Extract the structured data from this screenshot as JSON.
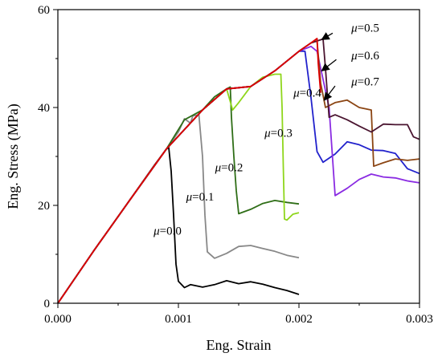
{
  "chart_data": {
    "type": "line",
    "xlabel": "Eng. Strain",
    "ylabel": "Eng. Stress (MPa)",
    "xlim": [
      0,
      0.003
    ],
    "ylim": [
      0,
      60
    ],
    "xticks": [
      "0.000",
      "0.001",
      "0.002",
      "0.003"
    ],
    "xtick_values": [
      0,
      0.001,
      0.002,
      0.003
    ],
    "yticks": [
      "0",
      "20",
      "40",
      "60"
    ],
    "ytick_values": [
      0,
      20,
      40,
      60
    ],
    "grid": false,
    "legend": "none",
    "series": [
      {
        "color": "#000000",
        "points": [
          [
            0,
            0
          ],
          [
            0.0003,
            10.8
          ],
          [
            0.0006,
            21.2
          ],
          [
            0.0008,
            28.2
          ],
          [
            0.0009,
            31.5
          ],
          [
            0.00092,
            31.8
          ],
          [
            0.00094,
            27
          ],
          [
            0.00096,
            18
          ],
          [
            0.00098,
            8
          ],
          [
            0.001,
            4.5
          ],
          [
            0.00105,
            3.2
          ],
          [
            0.0011,
            3.8
          ],
          [
            0.0012,
            3.3
          ],
          [
            0.0013,
            3.8
          ],
          [
            0.0014,
            4.6
          ],
          [
            0.0015,
            4.0
          ],
          [
            0.0016,
            4.4
          ],
          [
            0.0017,
            3.9
          ],
          [
            0.0018,
            3.2
          ],
          [
            0.0019,
            2.6
          ],
          [
            0.002,
            1.8
          ]
        ]
      },
      {
        "color": "#888888",
        "points": [
          [
            0,
            0
          ],
          [
            0.0003,
            10.8
          ],
          [
            0.0006,
            21.2
          ],
          [
            0.0009,
            31.5
          ],
          [
            0.001,
            35
          ],
          [
            0.00105,
            37.7
          ],
          [
            0.0011,
            36.8
          ],
          [
            0.00112,
            38.3
          ],
          [
            0.00117,
            38.5
          ],
          [
            0.0012,
            30
          ],
          [
            0.00122,
            18
          ],
          [
            0.00124,
            10.5
          ],
          [
            0.0013,
            9.2
          ],
          [
            0.0014,
            10.2
          ],
          [
            0.0015,
            11.6
          ],
          [
            0.0016,
            11.8
          ],
          [
            0.0017,
            11.2
          ],
          [
            0.0018,
            10.6
          ],
          [
            0.0019,
            9.8
          ],
          [
            0.002,
            9.3
          ]
        ]
      },
      {
        "color": "#2f6e17",
        "points": [
          [
            0,
            0
          ],
          [
            0.0003,
            10.8
          ],
          [
            0.0006,
            21.2
          ],
          [
            0.0009,
            31.5
          ],
          [
            0.00105,
            37.5
          ],
          [
            0.0012,
            39.5
          ],
          [
            0.0013,
            42.2
          ],
          [
            0.0014,
            43.8
          ],
          [
            0.00143,
            44.2
          ],
          [
            0.00144,
            38
          ],
          [
            0.00146,
            30
          ],
          [
            0.00148,
            23
          ],
          [
            0.0015,
            18.3
          ],
          [
            0.0016,
            19.2
          ],
          [
            0.0017,
            20.4
          ],
          [
            0.0018,
            21.0
          ],
          [
            0.0019,
            20.6
          ],
          [
            0.002,
            20.3
          ]
        ]
      },
      {
        "color": "#8fd61c",
        "points": [
          [
            0,
            0
          ],
          [
            0.0003,
            10.8
          ],
          [
            0.0006,
            21.2
          ],
          [
            0.0009,
            31.5
          ],
          [
            0.0012,
            39.5
          ],
          [
            0.0014,
            43.8
          ],
          [
            0.00145,
            39.5
          ],
          [
            0.0015,
            41
          ],
          [
            0.0016,
            44.3
          ],
          [
            0.0017,
            46.2
          ],
          [
            0.0018,
            46.8
          ],
          [
            0.00185,
            46.8
          ],
          [
            0.00186,
            40
          ],
          [
            0.00187,
            28
          ],
          [
            0.00188,
            17.2
          ],
          [
            0.0019,
            17
          ],
          [
            0.00195,
            18.2
          ],
          [
            0.002,
            18.5
          ]
        ]
      },
      {
        "color": "#2222cc",
        "points": [
          [
            0,
            0
          ],
          [
            0.0003,
            10.8
          ],
          [
            0.0006,
            21.2
          ],
          [
            0.0009,
            31.5
          ],
          [
            0.0012,
            39.5
          ],
          [
            0.0014,
            43.8
          ],
          [
            0.0016,
            44.3
          ],
          [
            0.0018,
            47.5
          ],
          [
            0.002,
            51.5
          ],
          [
            0.00205,
            51.5
          ],
          [
            0.0021,
            42
          ],
          [
            0.00215,
            31
          ],
          [
            0.0022,
            28.8
          ],
          [
            0.0023,
            30.5
          ],
          [
            0.0024,
            33
          ],
          [
            0.0025,
            32.4
          ],
          [
            0.0026,
            31.3
          ],
          [
            0.0027,
            31.2
          ],
          [
            0.0028,
            30.6
          ],
          [
            0.0029,
            27.5
          ],
          [
            0.003,
            26.5
          ]
        ]
      },
      {
        "color": "#8a2be2",
        "points": [
          [
            0,
            0
          ],
          [
            0.0003,
            10.8
          ],
          [
            0.0006,
            21.2
          ],
          [
            0.0009,
            31.5
          ],
          [
            0.0012,
            39.5
          ],
          [
            0.0014,
            43.8
          ],
          [
            0.0016,
            44.3
          ],
          [
            0.0018,
            47.5
          ],
          [
            0.002,
            51.5
          ],
          [
            0.0021,
            52.5
          ],
          [
            0.00215,
            51.5
          ],
          [
            0.00225,
            40
          ],
          [
            0.0023,
            22
          ],
          [
            0.0024,
            23.5
          ],
          [
            0.0025,
            25.3
          ],
          [
            0.0026,
            26.4
          ],
          [
            0.0027,
            25.8
          ],
          [
            0.0028,
            25.6
          ],
          [
            0.0029,
            25.0
          ],
          [
            0.003,
            24.6
          ]
        ]
      },
      {
        "color": "#8b4513",
        "points": [
          [
            0,
            0
          ],
          [
            0.0003,
            10.8
          ],
          [
            0.0006,
            21.2
          ],
          [
            0.0009,
            31.5
          ],
          [
            0.0012,
            39.5
          ],
          [
            0.0014,
            43.8
          ],
          [
            0.0016,
            44.3
          ],
          [
            0.0018,
            47.5
          ],
          [
            0.002,
            51.5
          ],
          [
            0.0021,
            53.2
          ],
          [
            0.00215,
            53.6
          ],
          [
            0.00218,
            45
          ],
          [
            0.00222,
            40
          ],
          [
            0.0023,
            41
          ],
          [
            0.0024,
            41.5
          ],
          [
            0.0025,
            40
          ],
          [
            0.0026,
            39.5
          ],
          [
            0.00262,
            28
          ],
          [
            0.0027,
            28.7
          ],
          [
            0.0028,
            29.5
          ],
          [
            0.0029,
            29.2
          ],
          [
            0.003,
            29.5
          ]
        ]
      },
      {
        "color": "#4a1530",
        "points": [
          [
            0,
            0
          ],
          [
            0.0003,
            10.8
          ],
          [
            0.0006,
            21.2
          ],
          [
            0.0009,
            31.5
          ],
          [
            0.0012,
            39.5
          ],
          [
            0.0014,
            43.8
          ],
          [
            0.0016,
            44.3
          ],
          [
            0.0018,
            47.5
          ],
          [
            0.002,
            51.5
          ],
          [
            0.0021,
            53.2
          ],
          [
            0.0022,
            54
          ],
          [
            0.00222,
            48
          ],
          [
            0.00225,
            38
          ],
          [
            0.0023,
            38.5
          ],
          [
            0.0024,
            37.5
          ],
          [
            0.0025,
            36.2
          ],
          [
            0.0026,
            35
          ],
          [
            0.0027,
            36.6
          ],
          [
            0.0028,
            36.5
          ],
          [
            0.0029,
            36.5
          ],
          [
            0.00295,
            34
          ],
          [
            0.003,
            33.5
          ]
        ]
      },
      {
        "color": "#dd0000",
        "points": [
          [
            0,
            0
          ],
          [
            0.0003,
            10.8
          ],
          [
            0.0006,
            21.2
          ],
          [
            0.0009,
            31.5
          ],
          [
            0.0012,
            39.5
          ],
          [
            0.0014,
            43.8
          ],
          [
            0.0016,
            44.3
          ],
          [
            0.0018,
            47.5
          ],
          [
            0.002,
            51.5
          ],
          [
            0.0021,
            53.2
          ],
          [
            0.00215,
            54.1
          ],
          [
            0.00216,
            49
          ],
          [
            0.00218,
            43
          ]
        ]
      }
    ],
    "annotations": [
      {
        "text": "μ=0.0",
        "x": 0.00091,
        "y": 14
      },
      {
        "text": "μ=0.1",
        "x": 0.00118,
        "y": 21
      },
      {
        "text": "μ=0.2",
        "x": 0.00142,
        "y": 27
      },
      {
        "text": "μ=0.3",
        "x": 0.00183,
        "y": 34
      },
      {
        "text": "μ=0.4",
        "x": 0.00207,
        "y": 42.2
      },
      {
        "text": "μ=0.5",
        "x": 0.00255,
        "y": 55.5
      },
      {
        "text": "μ=0.6",
        "x": 0.00255,
        "y": 49.8
      },
      {
        "text": "μ=0.7",
        "x": 0.00255,
        "y": 44.5
      }
    ],
    "arrows": [
      {
        "from": [
          0.00228,
          55.2
        ],
        "to": [
          0.00219,
          53.9
        ]
      },
      {
        "from": [
          0.00231,
          49.8
        ],
        "to": [
          0.00219,
          47.5
        ]
      },
      {
        "from": [
          0.0023,
          44.4
        ],
        "to": [
          0.00221,
          41.5
        ]
      }
    ]
  }
}
